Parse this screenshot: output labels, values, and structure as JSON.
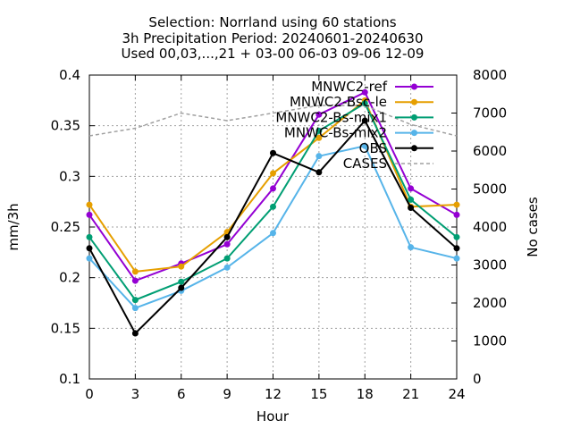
{
  "chart_data": {
    "type": "line",
    "title_lines": [
      "Selection: Norrland using    60 stations",
      "3h Precipitation   Period: 20240601-20240630",
      "Used 00,03,...,21 + 03-00 06-03 09-06 12-09"
    ],
    "xlabel": "Hour",
    "ylabel": "mm/3h",
    "y2label": "No cases",
    "x": [
      0,
      3,
      6,
      9,
      12,
      15,
      18,
      21,
      24
    ],
    "xlim": [
      0,
      24
    ],
    "ylim": [
      0.1,
      0.4
    ],
    "y2lim": [
      0,
      8000
    ],
    "xticks": [
      "0",
      "3",
      "6",
      "9",
      "12",
      "15",
      "18",
      "21",
      "24"
    ],
    "yticks": [
      "0.1",
      "0.15",
      "0.2",
      "0.25",
      "0.3",
      "0.35",
      "0.4"
    ],
    "y2ticks": [
      "0",
      "1000",
      "2000",
      "3000",
      "4000",
      "5000",
      "6000",
      "7000",
      "8000"
    ],
    "grid": true,
    "legend_position": "top-right",
    "series": [
      {
        "name": "MNWC2-ref",
        "color": "#9400d3",
        "marker": "filled-circle",
        "axis": "y1",
        "values": [
          0.262,
          0.197,
          0.214,
          0.233,
          0.288,
          0.361,
          0.383,
          0.288,
          0.262
        ]
      },
      {
        "name": "MNWC2-Bsc-le",
        "color": "#e69f00",
        "marker": "filled-circle",
        "axis": "y1",
        "values": [
          0.272,
          0.206,
          0.211,
          0.245,
          0.303,
          0.338,
          0.375,
          0.27,
          0.272
        ]
      },
      {
        "name": "MNWC2-Bs-mix1",
        "color": "#009e73",
        "marker": "filled-circle",
        "axis": "y1",
        "values": [
          0.24,
          0.178,
          0.196,
          0.219,
          0.27,
          0.345,
          0.372,
          0.277,
          0.24
        ]
      },
      {
        "name": "MNWC-Bs-mix2",
        "color": "#56b4e9",
        "marker": "filled-circle",
        "axis": "y1",
        "values": [
          0.219,
          0.17,
          0.187,
          0.21,
          0.244,
          0.32,
          0.33,
          0.23,
          0.219
        ]
      },
      {
        "name": "OBS",
        "color": "#000000",
        "marker": "filled-circle",
        "axis": "y1",
        "values": [
          0.229,
          0.145,
          0.19,
          0.24,
          0.323,
          0.304,
          0.355,
          0.269,
          0.229
        ]
      },
      {
        "name": "CASES",
        "color": "#a0a0a0",
        "marker": "none",
        "dash": true,
        "axis": "y2",
        "values": [
          6400,
          6600,
          7000,
          6800,
          7000,
          7200,
          7200,
          6700,
          6400
        ]
      }
    ]
  }
}
